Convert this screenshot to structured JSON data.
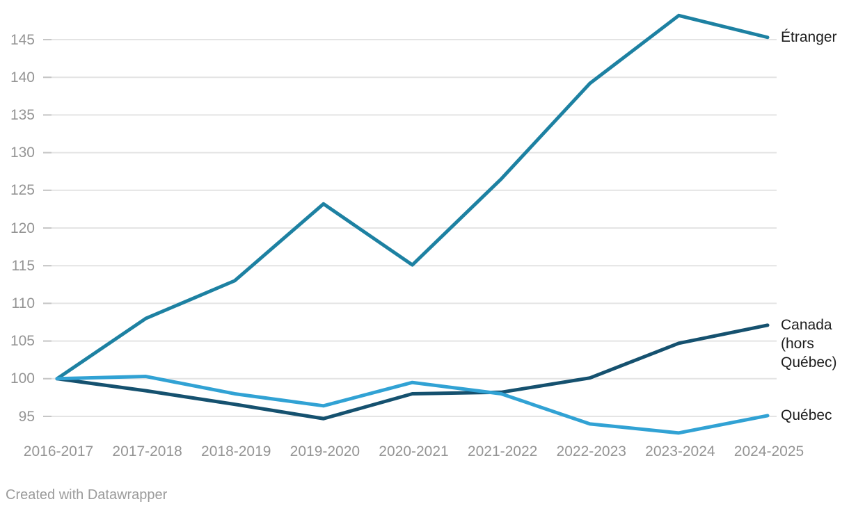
{
  "chart_data": {
    "type": "line",
    "categories": [
      "2016-2017",
      "2017-2018",
      "2018-2019",
      "2019-2020",
      "2020-2021",
      "2021-2022",
      "2022-2023",
      "2023-2024",
      "2024-2025"
    ],
    "series": [
      {
        "name": "Étranger",
        "color": "#1d81a2",
        "values": [
          100,
          108,
          113,
          123.2,
          115.1,
          126.5,
          139.2,
          148.2,
          145.3
        ]
      },
      {
        "name": "Canada (hors Québec)",
        "color": "#15516f",
        "values": [
          100,
          98.4,
          96.6,
          94.7,
          98,
          98.2,
          100.1,
          104.7,
          107.1
        ]
      },
      {
        "name": "Québec",
        "color": "#31a2d4",
        "values": [
          100,
          100.3,
          98,
          96.4,
          99.5,
          98,
          94,
          92.8,
          95.1
        ]
      }
    ],
    "y_ticks": [
      95,
      100,
      105,
      110,
      115,
      120,
      125,
      130,
      135,
      140,
      145
    ],
    "ylim": [
      92.5,
      148.5
    ],
    "title": "",
    "xlabel": "",
    "ylabel": "",
    "grid": "horizontal",
    "legend_position": "direct-labels-right"
  },
  "colors": {
    "grid": "#e4e4e4",
    "tick": "#c6c6c6",
    "axis_text": "#949494",
    "series_label_text": "#1d1d1d",
    "footer_text": "#9b9b9b",
    "background": "#ffffff"
  },
  "footer": {
    "credit": "Created with Datawrapper"
  }
}
